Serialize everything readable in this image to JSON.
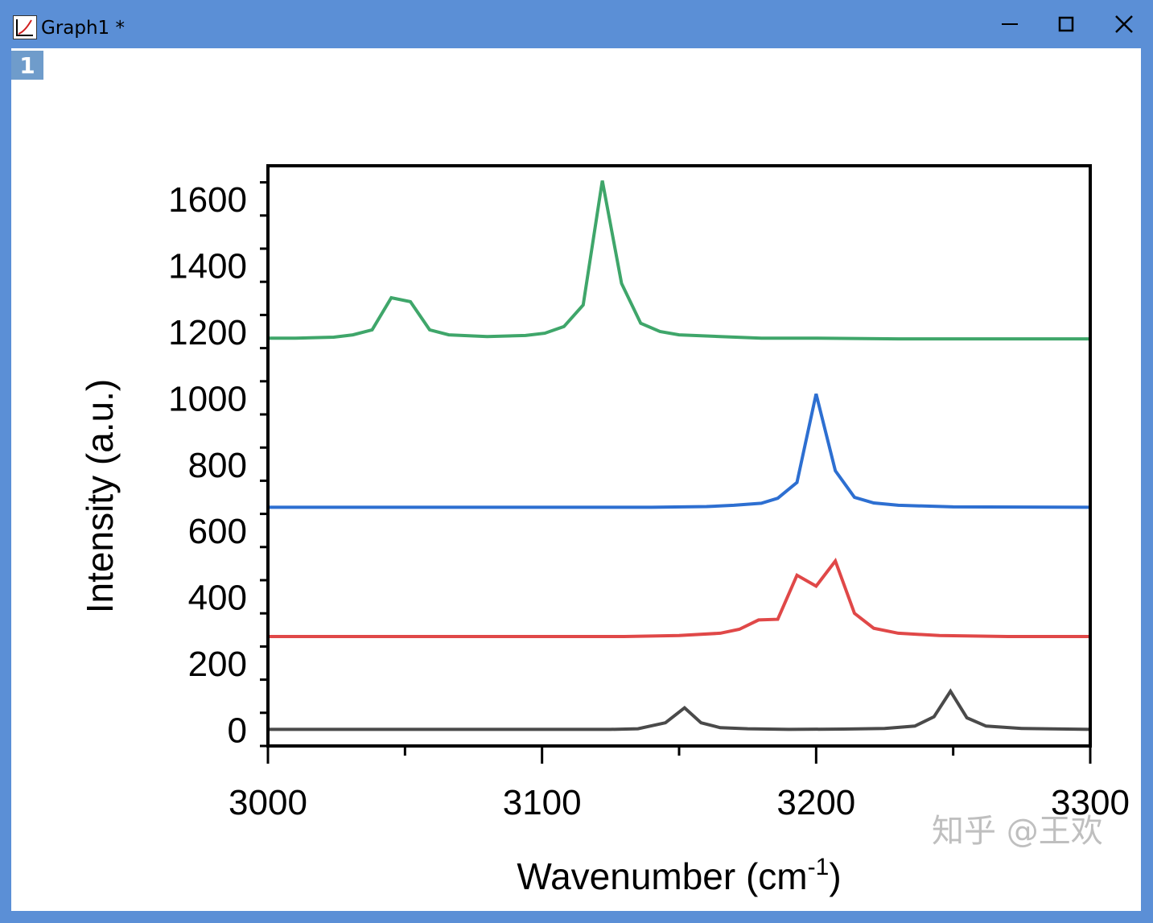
{
  "window": {
    "title": "Graph1 *",
    "layer_number": "1",
    "watermark": "知乎 @王欢",
    "controls": {
      "minimize": "minimize-icon",
      "maximize": "maximize-icon",
      "close": "close-icon"
    }
  },
  "chart_data": {
    "type": "line",
    "title": "",
    "xlabel": "Wavenumber (cm",
    "xlabel_superscript": "-1",
    "xlabel_suffix": ")",
    "ylabel": "Intensity (a.u.)",
    "xlim": [
      3000,
      3300
    ],
    "ylim": [
      -50,
      1700
    ],
    "x_ticks": [
      3000,
      3100,
      3200,
      3300
    ],
    "y_ticks": [
      0,
      200,
      400,
      600,
      800,
      1000,
      1200,
      1400,
      1600
    ],
    "grid": false,
    "legend": "none",
    "series": [
      {
        "color": "#4a4a4a",
        "x": [
          3000,
          3020,
          3050,
          3080,
          3110,
          3125,
          3135,
          3145,
          3152,
          3158,
          3165,
          3175,
          3190,
          3210,
          3225,
          3236,
          3243,
          3249,
          3255,
          3262,
          3275,
          3300
        ],
        "y": [
          0,
          0,
          0,
          0,
          0,
          0,
          2,
          20,
          65,
          20,
          5,
          2,
          0,
          1,
          3,
          10,
          38,
          115,
          35,
          10,
          3,
          0
        ]
      },
      {
        "color": "#e04848",
        "x": [
          3000,
          3050,
          3100,
          3130,
          3150,
          3165,
          3172,
          3179,
          3186,
          3193,
          3200,
          3207,
          3214,
          3221,
          3230,
          3245,
          3270,
          3300
        ],
        "y": [
          280,
          280,
          280,
          280,
          283,
          290,
          302,
          330,
          332,
          465,
          432,
          508,
          350,
          305,
          290,
          283,
          280,
          280
        ],
        "label_anchor": 280
      },
      {
        "color": "#2d6fd1",
        "x": [
          3000,
          3050,
          3100,
          3140,
          3160,
          3170,
          3180,
          3186,
          3193,
          3200,
          3207,
          3214,
          3221,
          3230,
          3250,
          3300
        ],
        "y": [
          670,
          670,
          670,
          670,
          672,
          676,
          682,
          697,
          745,
          1012,
          780,
          700,
          683,
          676,
          671,
          670
        ]
      },
      {
        "color": "#3fa66a",
        "x": [
          3000,
          3010,
          3024,
          3031,
          3038,
          3045,
          3052,
          3059,
          3066,
          3080,
          3094,
          3101,
          3108,
          3115,
          3122,
          3129,
          3136,
          3143,
          3150,
          3165,
          3180,
          3200,
          3230,
          3260,
          3300
        ],
        "y": [
          1180,
          1180,
          1183,
          1190,
          1205,
          1302,
          1290,
          1205,
          1190,
          1185,
          1188,
          1195,
          1215,
          1280,
          1655,
          1345,
          1225,
          1200,
          1190,
          1185,
          1180,
          1180,
          1178,
          1178,
          1178
        ]
      }
    ]
  }
}
